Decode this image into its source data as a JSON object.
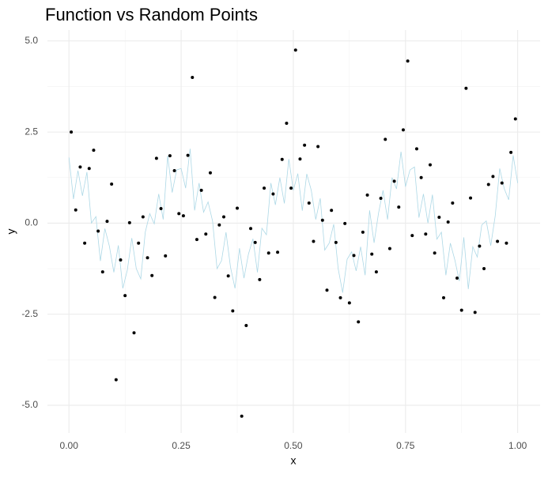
{
  "chart_data": {
    "type": "line+scatter",
    "title": "Function vs Random Points",
    "x_label": "x",
    "y_label": "y",
    "xlim": [
      -0.048,
      1.05
    ],
    "ylim": [
      -5.76,
      5.3
    ],
    "xticks": [
      {
        "value": 0,
        "label": "0.00"
      },
      {
        "value": 0.25,
        "label": "0.25"
      },
      {
        "value": 0.5,
        "label": "0.50"
      },
      {
        "value": 0.75,
        "label": "0.75"
      },
      {
        "value": 1,
        "label": "1.00"
      }
    ],
    "yticks": [
      {
        "value": -5,
        "label": "-5.0"
      },
      {
        "value": -2.5,
        "label": "-2.5"
      },
      {
        "value": 0,
        "label": "0.0"
      },
      {
        "value": 2.5,
        "label": "2.5"
      },
      {
        "value": 5,
        "label": "5.0"
      }
    ],
    "grid": true,
    "series": [
      {
        "kind": "line",
        "color": "#add8e6",
        "x": [
          0,
          0.01,
          0.02,
          0.03,
          0.04,
          0.05,
          0.06,
          0.07,
          0.08,
          0.09,
          0.1,
          0.11,
          0.12,
          0.13,
          0.14,
          0.15,
          0.16,
          0.17,
          0.18,
          0.19,
          0.2,
          0.21,
          0.22,
          0.23,
          0.24,
          0.25,
          0.26,
          0.27,
          0.28,
          0.29,
          0.3,
          0.31,
          0.32,
          0.33,
          0.34,
          0.35,
          0.36,
          0.37,
          0.38,
          0.39,
          0.4,
          0.41,
          0.42,
          0.43,
          0.44,
          0.45,
          0.46,
          0.47,
          0.48,
          0.49,
          0.5,
          0.51,
          0.52,
          0.53,
          0.54,
          0.55,
          0.56,
          0.57,
          0.58,
          0.59,
          0.6,
          0.61,
          0.62,
          0.63,
          0.64,
          0.65,
          0.66,
          0.67,
          0.68,
          0.69,
          0.7,
          0.71,
          0.72,
          0.73,
          0.74,
          0.75,
          0.76,
          0.77,
          0.78,
          0.79,
          0.8,
          0.81,
          0.82,
          0.83,
          0.84,
          0.85,
          0.86,
          0.87,
          0.88,
          0.89,
          0.9,
          0.91,
          0.92,
          0.93,
          0.94,
          0.95,
          0.96,
          0.97,
          0.98,
          0.99,
          1
        ],
        "values": [
          1.8,
          0.66,
          1.44,
          0.75,
          1.4,
          0,
          0.18,
          -1.04,
          -0.15,
          -0.63,
          -1.35,
          -0.61,
          -1.79,
          -1.29,
          -0.41,
          -1.25,
          -1.53,
          -0.25,
          0.26,
          -0.02,
          0.8,
          0.1,
          1.85,
          0.84,
          1.46,
          1.5,
          0.96,
          2.04,
          0.35,
          1.1,
          0.3,
          0.58,
          0.06,
          -1.25,
          -1.03,
          -0.25,
          -1.21,
          -1.79,
          -0.69,
          -1.51,
          -0.85,
          -0.43,
          -1.35,
          -0.14,
          -0.32,
          1.1,
          0.5,
          1.25,
          0.54,
          1.76,
          0.9,
          1.36,
          0.34,
          1.35,
          0.9,
          0.1,
          0.68,
          -0.74,
          -0.55,
          -0.03,
          -1.25,
          -1.91,
          -0.99,
          -0.79,
          -1.31,
          -0.65,
          -1.43,
          0.35,
          -0.54,
          0.28,
          0.9,
          0.1,
          1.25,
          0.94,
          1.96,
          1.0,
          1.46,
          1.54,
          0.15,
          0.8,
          0,
          0.78,
          -0.44,
          -0.25,
          -1.43,
          -0.55,
          -1.01,
          -1.59,
          -0.39,
          -1.81,
          -0.65,
          -0.93,
          -0.05,
          0.06,
          -0.62,
          0.2,
          1.5,
          0.95,
          0.64,
          1.86,
          1.1
        ]
      },
      {
        "kind": "scatter",
        "color": "#000000",
        "x": [
          0.005,
          0.015,
          0.025,
          0.035,
          0.045,
          0.055,
          0.065,
          0.075,
          0.085,
          0.095,
          0.105,
          0.115,
          0.125,
          0.135,
          0.145,
          0.155,
          0.165,
          0.175,
          0.185,
          0.195,
          0.205,
          0.215,
          0.225,
          0.235,
          0.245,
          0.255,
          0.265,
          0.275,
          0.285,
          0.295,
          0.305,
          0.315,
          0.325,
          0.335,
          0.345,
          0.355,
          0.365,
          0.375,
          0.385,
          0.395,
          0.405,
          0.415,
          0.425,
          0.435,
          0.445,
          0.455,
          0.465,
          0.475,
          0.485,
          0.495,
          0.505,
          0.515,
          0.525,
          0.535,
          0.545,
          0.555,
          0.565,
          0.575,
          0.585,
          0.595,
          0.605,
          0.615,
          0.625,
          0.635,
          0.645,
          0.655,
          0.665,
          0.675,
          0.685,
          0.695,
          0.705,
          0.715,
          0.725,
          0.735,
          0.745,
          0.755,
          0.765,
          0.775,
          0.785,
          0.795,
          0.805,
          0.815,
          0.825,
          0.835,
          0.845,
          0.855,
          0.865,
          0.875,
          0.885,
          0.895,
          0.905,
          0.915,
          0.925,
          0.935,
          0.945,
          0.955,
          0.965,
          0.975,
          0.985,
          0.995
        ],
        "values": [
          2.5,
          0.36,
          1.54,
          -0.55,
          1.5,
          2.0,
          -0.22,
          -1.34,
          0.05,
          1.07,
          -4.3,
          -1.01,
          -1.99,
          0.01,
          -3.01,
          -0.55,
          0.17,
          -0.95,
          -1.44,
          1.78,
          0.4,
          -0.9,
          1.85,
          1.44,
          0.26,
          0.2,
          1.86,
          4.0,
          -0.45,
          0.9,
          -0.3,
          1.38,
          -2.04,
          -0.05,
          0.17,
          -1.45,
          -2.41,
          0.41,
          -5.3,
          -2.81,
          -0.15,
          -0.53,
          -1.55,
          0.96,
          -0.82,
          0.8,
          -0.8,
          1.75,
          2.74,
          0.96,
          4.75,
          1.76,
          2.14,
          0.55,
          -0.5,
          2.1,
          0.08,
          -1.84,
          0.35,
          -0.53,
          -2.05,
          -0.01,
          -2.19,
          -0.89,
          -2.71,
          -0.25,
          0.77,
          -0.85,
          -1.34,
          0.68,
          2.3,
          -0.7,
          1.15,
          0.44,
          2.56,
          4.45,
          -0.34,
          2.04,
          1.25,
          -0.3,
          1.6,
          -0.82,
          0.16,
          -2.05,
          0.03,
          0.55,
          -1.51,
          -2.39,
          3.7,
          0.69,
          -2.45,
          -0.63,
          -1.25,
          1.06,
          1.28,
          -0.5,
          1.1,
          -0.55,
          1.94,
          2.86
        ]
      }
    ]
  }
}
